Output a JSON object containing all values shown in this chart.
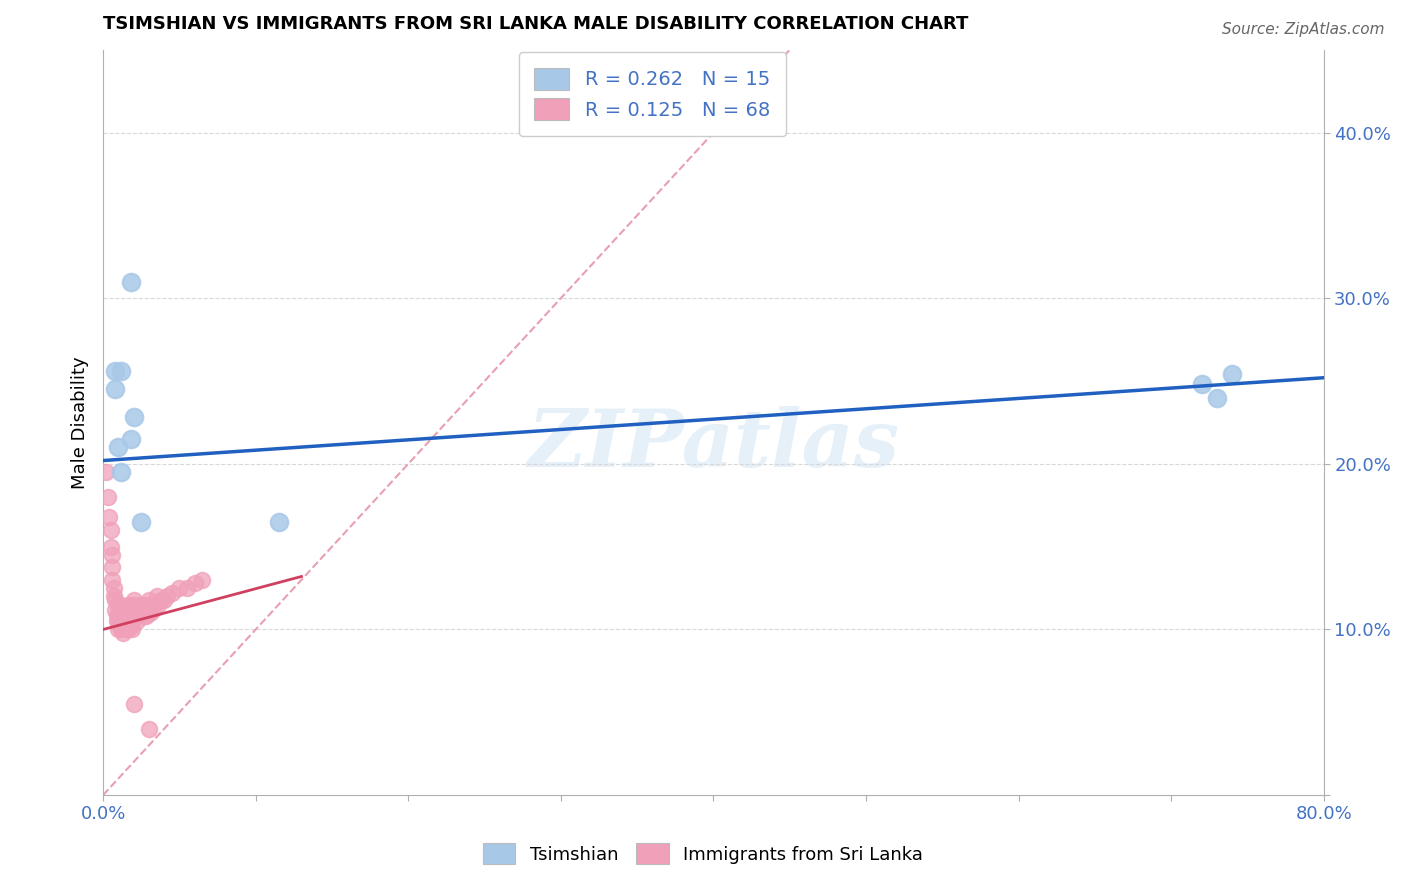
{
  "title": "TSIMSHIAN VS IMMIGRANTS FROM SRI LANKA MALE DISABILITY CORRELATION CHART",
  "source": "Source: ZipAtlas.com",
  "ylabel": "Male Disability",
  "xlim": [
    0.0,
    0.8
  ],
  "ylim": [
    0.0,
    0.45
  ],
  "xticks": [
    0.0,
    0.1,
    0.2,
    0.3,
    0.4,
    0.5,
    0.6,
    0.7,
    0.8
  ],
  "xticklabels": [
    "0.0%",
    "",
    "",
    "",
    "",
    "",
    "",
    "",
    "80.0%"
  ],
  "yticks": [
    0.0,
    0.1,
    0.2,
    0.3,
    0.4
  ],
  "yticklabels": [
    "",
    "10.0%",
    "20.0%",
    "30.0%",
    "40.0%"
  ],
  "tsimshian_color": "#a8c8e8",
  "srilanka_color": "#f0a0b8",
  "tsimshian_line_color": "#2060c0",
  "srilanka_line_color": "#d04060",
  "diagonal_color": "#e8a0b0",
  "watermark": "ZIPatlas",
  "background_color": "#ffffff",
  "grid_color": "#d8d8d8",
  "tsimshian_x": [
    0.008,
    0.012,
    0.008,
    0.02,
    0.018,
    0.01,
    0.012,
    0.018,
    0.025,
    0.115,
    0.72,
    0.74,
    0.73
  ],
  "tsimshian_y": [
    0.256,
    0.256,
    0.245,
    0.228,
    0.215,
    0.21,
    0.195,
    0.31,
    0.165,
    0.165,
    0.248,
    0.254,
    0.24
  ],
  "srilanka_x": [
    0.002,
    0.003,
    0.004,
    0.005,
    0.005,
    0.006,
    0.006,
    0.006,
    0.007,
    0.007,
    0.008,
    0.008,
    0.009,
    0.009,
    0.01,
    0.01,
    0.01,
    0.01,
    0.011,
    0.011,
    0.011,
    0.012,
    0.012,
    0.012,
    0.013,
    0.013,
    0.013,
    0.014,
    0.014,
    0.015,
    0.015,
    0.016,
    0.016,
    0.016,
    0.017,
    0.017,
    0.018,
    0.018,
    0.018,
    0.019,
    0.019,
    0.02,
    0.02,
    0.021,
    0.022,
    0.022,
    0.023,
    0.024,
    0.025,
    0.026,
    0.027,
    0.028,
    0.028,
    0.029,
    0.03,
    0.031,
    0.032,
    0.033,
    0.035,
    0.036,
    0.038,
    0.04,
    0.042,
    0.045,
    0.05,
    0.055,
    0.06,
    0.065,
    0.02,
    0.03
  ],
  "srilanka_y": [
    0.195,
    0.18,
    0.168,
    0.16,
    0.15,
    0.145,
    0.138,
    0.13,
    0.125,
    0.12,
    0.118,
    0.112,
    0.108,
    0.105,
    0.115,
    0.11,
    0.105,
    0.1,
    0.11,
    0.108,
    0.102,
    0.115,
    0.108,
    0.1,
    0.112,
    0.105,
    0.098,
    0.11,
    0.104,
    0.108,
    0.1,
    0.115,
    0.108,
    0.1,
    0.112,
    0.105,
    0.115,
    0.11,
    0.102,
    0.108,
    0.1,
    0.118,
    0.108,
    0.112,
    0.115,
    0.105,
    0.11,
    0.108,
    0.115,
    0.11,
    0.108,
    0.115,
    0.108,
    0.112,
    0.118,
    0.11,
    0.115,
    0.112,
    0.12,
    0.115,
    0.118,
    0.118,
    0.12,
    0.122,
    0.125,
    0.125,
    0.128,
    0.13,
    0.055,
    0.04
  ],
  "tsimshian_line_x0": 0.0,
  "tsimshian_line_y0": 0.202,
  "tsimshian_line_x1": 0.8,
  "tsimshian_line_y1": 0.252,
  "srilanka_line_x0": 0.0,
  "srilanka_line_y0": 0.1,
  "srilanka_line_x1": 0.13,
  "srilanka_line_y1": 0.132
}
